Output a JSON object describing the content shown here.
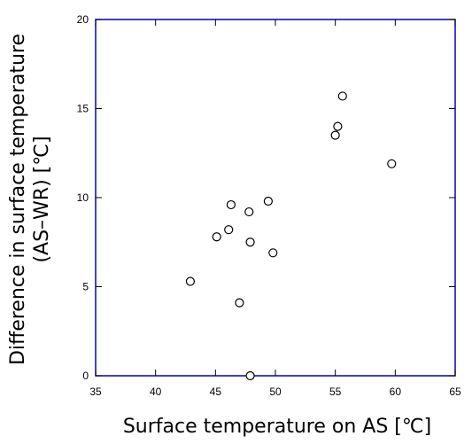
{
  "chart_data": {
    "type": "scatter",
    "title": "",
    "xlabel": "Surface temperature on AS [℃]",
    "ylabel_line1": "Difference in surface temperature",
    "ylabel_line2": "(AS–WR) [℃]",
    "xlim": [
      35,
      65
    ],
    "ylim": [
      0,
      20
    ],
    "x_ticks": [
      35,
      40,
      45,
      50,
      55,
      60,
      65
    ],
    "y_ticks": [
      0,
      5,
      10,
      15,
      20
    ],
    "grid": false,
    "marker": "open-circle",
    "frame_color": "#0000cc",
    "points": [
      {
        "x": 42.9,
        "y": 5.3
      },
      {
        "x": 45.1,
        "y": 7.8
      },
      {
        "x": 46.1,
        "y": 8.2
      },
      {
        "x": 46.3,
        "y": 9.6
      },
      {
        "x": 47.0,
        "y": 4.1
      },
      {
        "x": 47.8,
        "y": 9.2
      },
      {
        "x": 47.9,
        "y": 7.5
      },
      {
        "x": 47.9,
        "y": 0.0
      },
      {
        "x": 49.4,
        "y": 9.8
      },
      {
        "x": 49.8,
        "y": 6.9
      },
      {
        "x": 55.0,
        "y": 13.5
      },
      {
        "x": 55.2,
        "y": 14.0
      },
      {
        "x": 55.6,
        "y": 15.7
      },
      {
        "x": 59.7,
        "y": 11.9
      }
    ]
  }
}
